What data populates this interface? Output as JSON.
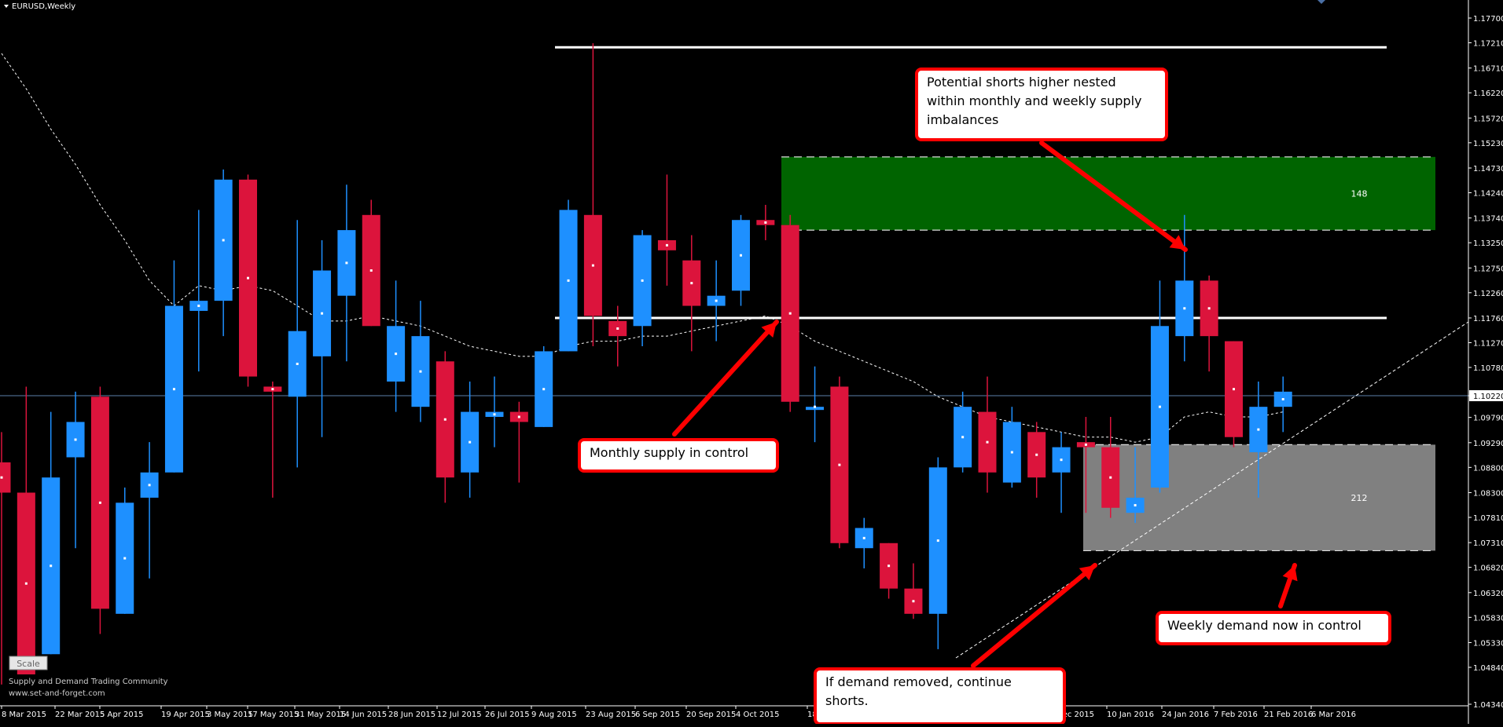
{
  "window": {
    "title": "EURUSD,Weekly",
    "current_price": "1.10220"
  },
  "price_axis": {
    "ticks": [
      "1.17700",
      "1.17210",
      "1.16710",
      "1.16220",
      "1.15720",
      "1.15230",
      "1.14730",
      "1.14240",
      "1.13740",
      "1.13250",
      "1.12750",
      "1.12260",
      "1.11760",
      "1.11270",
      "1.10780",
      "1.10220",
      "1.09790",
      "1.09290",
      "1.08800",
      "1.08300",
      "1.07810",
      "1.07310",
      "1.06820",
      "1.06320",
      "1.05830",
      "1.05330",
      "1.04840",
      "1.04340"
    ]
  },
  "time_axis": {
    "labels": [
      "8 Mar 2015",
      "22 Mar 2015",
      "5 Apr 2015",
      "19 Apr 2015",
      "3 May 2015",
      "17 May 2015",
      "31 May 2015",
      "14 Jun 2015",
      "28 Jun 2015",
      "12 Jul 2015",
      "26 Jul 2015",
      "9 Aug 2015",
      "23 Aug 2015",
      "6 Sep 2015",
      "20 Sep 2015",
      "4 Oct 2015",
      "18",
      "Dec 2015",
      "10 Jan 2016",
      "24 Jan 2016",
      "7 Feb 2016",
      "21 Feb 2016",
      "6 Mar 2016"
    ]
  },
  "zones": {
    "supply_label": "148",
    "demand_label": "212"
  },
  "annotations": {
    "top_note": "Potential shorts higher nested within monthly and weekly supply imbalances",
    "top_note_lines": [
      "Potential shorts higher nested",
      "within monthly and weekly supply",
      "imbalances"
    ],
    "monthly_supply": "Monthly supply in control",
    "weekly_demand": "Weekly demand now in control",
    "demand_removed_lines": [
      "If demand removed, continue",
      "shorts."
    ]
  },
  "scale_button": "Scale",
  "footer": {
    "community": "Supply and Demand Trading Community",
    "website": "www.set-and-forget.com"
  },
  "colors": {
    "bull": "#1e90ff",
    "bear": "#dc143c",
    "supply_zone": "#006400",
    "demand_zone": "#808080",
    "annotation_border": "#ff0000"
  },
  "chart_data": {
    "type": "candlestick",
    "symbol": "EURUSD",
    "timeframe": "Weekly",
    "ylim": [
      1.0414,
      1.1784
    ],
    "candles": [
      {
        "o": 1.089,
        "h": 1.095,
        "l": 1.045,
        "c": 1.083
      },
      {
        "o": 1.083,
        "h": 1.104,
        "l": 1.047,
        "c": 1.047
      },
      {
        "o": 1.051,
        "h": 1.099,
        "l": 1.051,
        "c": 1.086
      },
      {
        "o": 1.09,
        "h": 1.103,
        "l": 1.072,
        "c": 1.097
      },
      {
        "o": 1.102,
        "h": 1.104,
        "l": 1.055,
        "c": 1.06
      },
      {
        "o": 1.059,
        "h": 1.084,
        "l": 1.059,
        "c": 1.081
      },
      {
        "o": 1.082,
        "h": 1.093,
        "l": 1.066,
        "c": 1.087
      },
      {
        "o": 1.087,
        "h": 1.129,
        "l": 1.087,
        "c": 1.12
      },
      {
        "o": 1.119,
        "h": 1.139,
        "l": 1.107,
        "c": 1.121
      },
      {
        "o": 1.121,
        "h": 1.147,
        "l": 1.114,
        "c": 1.145
      },
      {
        "o": 1.145,
        "h": 1.146,
        "l": 1.104,
        "c": 1.106
      },
      {
        "o": 1.104,
        "h": 1.105,
        "l": 1.082,
        "c": 1.103
      },
      {
        "o": 1.102,
        "h": 1.137,
        "l": 1.088,
        "c": 1.115
      },
      {
        "o": 1.11,
        "h": 1.133,
        "l": 1.094,
        "c": 1.127
      },
      {
        "o": 1.122,
        "h": 1.144,
        "l": 1.109,
        "c": 1.135
      },
      {
        "o": 1.138,
        "h": 1.141,
        "l": 1.116,
        "c": 1.116
      },
      {
        "o": 1.105,
        "h": 1.125,
        "l": 1.099,
        "c": 1.116
      },
      {
        "o": 1.1,
        "h": 1.121,
        "l": 1.097,
        "c": 1.114
      },
      {
        "o": 1.109,
        "h": 1.111,
        "l": 1.081,
        "c": 1.086
      },
      {
        "o": 1.087,
        "h": 1.105,
        "l": 1.082,
        "c": 1.099
      },
      {
        "o": 1.098,
        "h": 1.106,
        "l": 1.092,
        "c": 1.099
      },
      {
        "o": 1.099,
        "h": 1.101,
        "l": 1.085,
        "c": 1.097
      },
      {
        "o": 1.096,
        "h": 1.112,
        "l": 1.096,
        "c": 1.111
      },
      {
        "o": 1.111,
        "h": 1.141,
        "l": 1.111,
        "c": 1.139
      },
      {
        "o": 1.138,
        "h": 1.172,
        "l": 1.112,
        "c": 1.118
      },
      {
        "o": 1.117,
        "h": 1.12,
        "l": 1.108,
        "c": 1.114
      },
      {
        "o": 1.116,
        "h": 1.135,
        "l": 1.112,
        "c": 1.134
      },
      {
        "o": 1.133,
        "h": 1.146,
        "l": 1.124,
        "c": 1.131
      },
      {
        "o": 1.129,
        "h": 1.134,
        "l": 1.111,
        "c": 1.12
      },
      {
        "o": 1.12,
        "h": 1.129,
        "l": 1.113,
        "c": 1.122
      },
      {
        "o": 1.123,
        "h": 1.138,
        "l": 1.12,
        "c": 1.137
      },
      {
        "o": 1.137,
        "h": 1.14,
        "l": 1.133,
        "c": 1.136
      },
      {
        "o": 1.136,
        "h": 1.138,
        "l": 1.099,
        "c": 1.101
      },
      {
        "o": 1.1,
        "h": 1.108,
        "l": 1.093,
        "c": 1.1
      },
      {
        "o": 1.104,
        "h": 1.106,
        "l": 1.072,
        "c": 1.073
      },
      {
        "o": 1.072,
        "h": 1.078,
        "l": 1.068,
        "c": 1.076
      },
      {
        "o": 1.073,
        "h": 1.073,
        "l": 1.062,
        "c": 1.064
      },
      {
        "o": 1.064,
        "h": 1.069,
        "l": 1.058,
        "c": 1.059
      },
      {
        "o": 1.059,
        "h": 1.09,
        "l": 1.052,
        "c": 1.088
      },
      {
        "o": 1.088,
        "h": 1.103,
        "l": 1.087,
        "c": 1.1
      },
      {
        "o": 1.099,
        "h": 1.106,
        "l": 1.083,
        "c": 1.087
      },
      {
        "o": 1.085,
        "h": 1.1,
        "l": 1.084,
        "c": 1.097
      },
      {
        "o": 1.095,
        "h": 1.097,
        "l": 1.082,
        "c": 1.086
      },
      {
        "o": 1.087,
        "h": 1.095,
        "l": 1.079,
        "c": 1.092
      },
      {
        "o": 1.093,
        "h": 1.098,
        "l": 1.079,
        "c": 1.092
      },
      {
        "o": 1.092,
        "h": 1.098,
        "l": 1.078,
        "c": 1.08
      },
      {
        "o": 1.079,
        "h": 1.092,
        "l": 1.077,
        "c": 1.082
      },
      {
        "o": 1.084,
        "h": 1.125,
        "l": 1.083,
        "c": 1.116
      },
      {
        "o": 1.114,
        "h": 1.138,
        "l": 1.109,
        "c": 1.125
      },
      {
        "o": 1.125,
        "h": 1.126,
        "l": 1.107,
        "c": 1.114
      },
      {
        "o": 1.113,
        "h": 1.113,
        "l": 1.092,
        "c": 1.094
      },
      {
        "o": 1.091,
        "h": 1.105,
        "l": 1.082,
        "c": 1.1
      },
      {
        "o": 1.1,
        "h": 1.106,
        "l": 1.095,
        "c": 1.103
      }
    ],
    "moving_average": [
      1.17,
      1.163,
      1.155,
      1.148,
      1.14,
      1.133,
      1.125,
      1.12,
      1.124,
      1.123,
      1.124,
      1.123,
      1.12,
      1.117,
      1.117,
      1.118,
      1.117,
      1.116,
      1.114,
      1.112,
      1.111,
      1.11,
      1.11,
      1.112,
      1.113,
      1.113,
      1.114,
      1.114,
      1.115,
      1.116,
      1.117,
      1.118,
      1.116,
      1.113,
      1.111,
      1.109,
      1.107,
      1.105,
      1.102,
      1.1,
      1.098,
      1.097,
      1.096,
      1.095,
      1.094,
      1.094,
      1.093,
      1.094,
      1.098,
      1.099,
      1.098,
      1.098,
      1.099
    ],
    "horizontal_levels": [
      1.1712,
      1.1176
    ],
    "current_price": 1.1022,
    "supply_zone": {
      "top": 1.1495,
      "bottom": 1.135
    },
    "demand_zone": {
      "top": 1.0925,
      "bottom": 1.0715
    },
    "trendline": {
      "from_index": 38,
      "from_price": 1.052,
      "to_index": 53,
      "to_price": 1.117
    }
  }
}
